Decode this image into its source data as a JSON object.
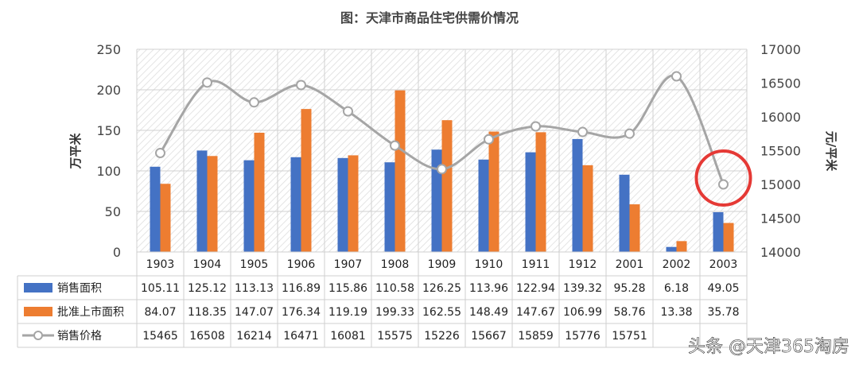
{
  "chart_data": {
    "type": "bar",
    "title": "图：天津市商品住宅供需价情况",
    "categories": [
      "1903",
      "1904",
      "1905",
      "1906",
      "1907",
      "1908",
      "1909",
      "1910",
      "1911",
      "1912",
      "2001",
      "2002",
      "2003"
    ],
    "ylabel_left": "万平米",
    "ylabel_right": "元/平米",
    "ylim_left": [
      0,
      250
    ],
    "yticks_left": [
      "0",
      "50",
      "100",
      "150",
      "200",
      "250"
    ],
    "ylim_right": [
      14000,
      17000
    ],
    "yticks_right": [
      "14000",
      "14500",
      "15000",
      "15500",
      "16000",
      "16500",
      "17000"
    ],
    "grid": true,
    "series": [
      {
        "name": "销售面积",
        "axis": "left",
        "type": "bar",
        "color": "#4472C4",
        "values": [
          105.11,
          125.12,
          113.13,
          116.89,
          115.86,
          110.58,
          126.25,
          113.96,
          122.94,
          139.32,
          95.28,
          6.18,
          49.05
        ],
        "labels": [
          "105.11",
          "125.12",
          "113.13",
          "116.89",
          "115.86",
          "110.58",
          "126.25",
          "113.96",
          "122.94",
          "139.32",
          "95.28",
          "6.18",
          "49.05"
        ]
      },
      {
        "name": "批准上市面积",
        "axis": "left",
        "type": "bar",
        "color": "#ED7D31",
        "values": [
          84.07,
          118.35,
          147.07,
          176.34,
          119.19,
          199.33,
          162.55,
          148.49,
          147.67,
          106.99,
          58.76,
          13.38,
          35.78
        ],
        "labels": [
          "84.07",
          "118.35",
          "147.07",
          "176.34",
          "119.19",
          "199.33",
          "162.55",
          "148.49",
          "147.67",
          "106.99",
          "58.76",
          "13.38",
          "35.78"
        ]
      },
      {
        "name": "销售价格",
        "axis": "right",
        "type": "line",
        "color": "#A5A5A5",
        "values": [
          15465,
          16508,
          16214,
          16471,
          16081,
          15575,
          15226,
          15667,
          15859,
          15776,
          15751,
          16600,
          15000
        ],
        "labels": [
          "15465",
          "16508",
          "16214",
          "16471",
          "16081",
          "15575",
          "15226",
          "15667",
          "15859",
          "15776",
          "15751",
          "",
          ""
        ]
      }
    ],
    "annotation": {
      "type": "circle",
      "category": "2003",
      "color": "#E53935"
    }
  },
  "watermark": "头条 @天津365淘房"
}
